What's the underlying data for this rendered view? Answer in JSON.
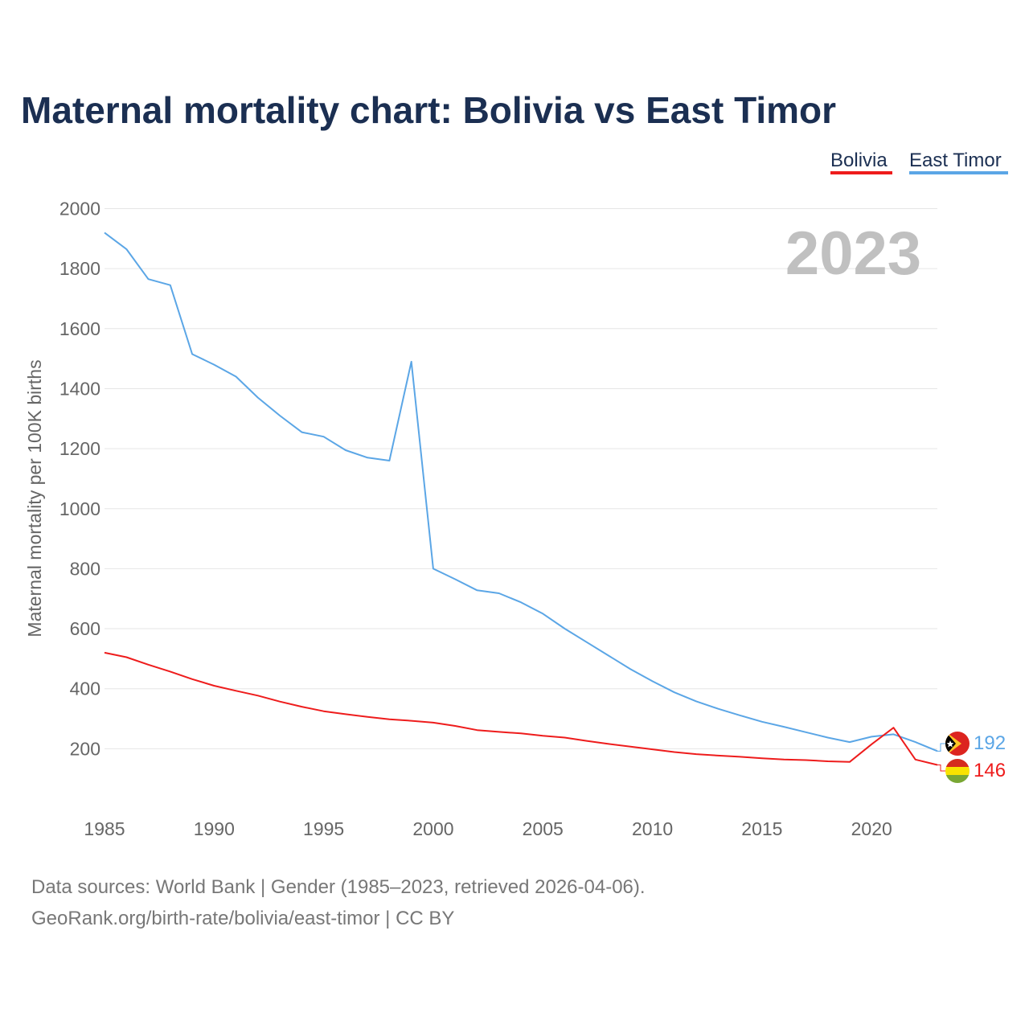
{
  "title": "Maternal mortality chart: Bolivia vs East Timor",
  "year_label": "2023",
  "legend": [
    {
      "label": "Bolivia",
      "color": "#ee1c1c"
    },
    {
      "label": "East Timor",
      "color": "#5ba6e6"
    }
  ],
  "source_line1": "Data sources: World Bank | Gender (1985–2023, retrieved 2026-04-06).",
  "source_line2": "GeoRank.org/birth-rate/bolivia/east-timor | CC BY",
  "chart_data": {
    "type": "line",
    "title": "Maternal mortality chart: Bolivia vs East Timor",
    "xlabel": "",
    "ylabel": "Maternal mortality per 100K births",
    "xlim": [
      1985,
      2023
    ],
    "ylim": [
      0,
      2000
    ],
    "x_ticks": [
      1985,
      1990,
      1995,
      2000,
      2005,
      2010,
      2015,
      2020
    ],
    "y_ticks": [
      200,
      400,
      600,
      800,
      1000,
      1200,
      1400,
      1600,
      1800,
      2000
    ],
    "x": [
      1985,
      1986,
      1987,
      1988,
      1989,
      1990,
      1991,
      1992,
      1993,
      1994,
      1995,
      1996,
      1997,
      1998,
      1999,
      2000,
      2001,
      2002,
      2003,
      2004,
      2005,
      2006,
      2007,
      2008,
      2009,
      2010,
      2011,
      2012,
      2013,
      2014,
      2015,
      2016,
      2017,
      2018,
      2019,
      2020,
      2021,
      2022,
      2023
    ],
    "series": [
      {
        "name": "East Timor",
        "color": "#5ba6e6",
        "end_label": "192",
        "values": [
          1920,
          1865,
          1765,
          1745,
          1515,
          1480,
          1440,
          1370,
          1310,
          1255,
          1240,
          1195,
          1170,
          1160,
          1490,
          800,
          765,
          728,
          718,
          688,
          650,
          600,
          555,
          510,
          465,
          425,
          388,
          358,
          333,
          311,
          290,
          273,
          255,
          237,
          222,
          240,
          248,
          222,
          192
        ]
      },
      {
        "name": "Bolivia",
        "color": "#ee1c1c",
        "end_label": "146",
        "values": [
          520,
          505,
          480,
          457,
          432,
          410,
          393,
          377,
          357,
          340,
          325,
          315,
          306,
          298,
          293,
          287,
          276,
          262,
          256,
          251,
          243,
          237,
          226,
          216,
          207,
          198,
          189,
          182,
          177,
          173,
          168,
          164,
          162,
          158,
          156,
          215,
          270,
          164,
          146
        ]
      }
    ]
  }
}
